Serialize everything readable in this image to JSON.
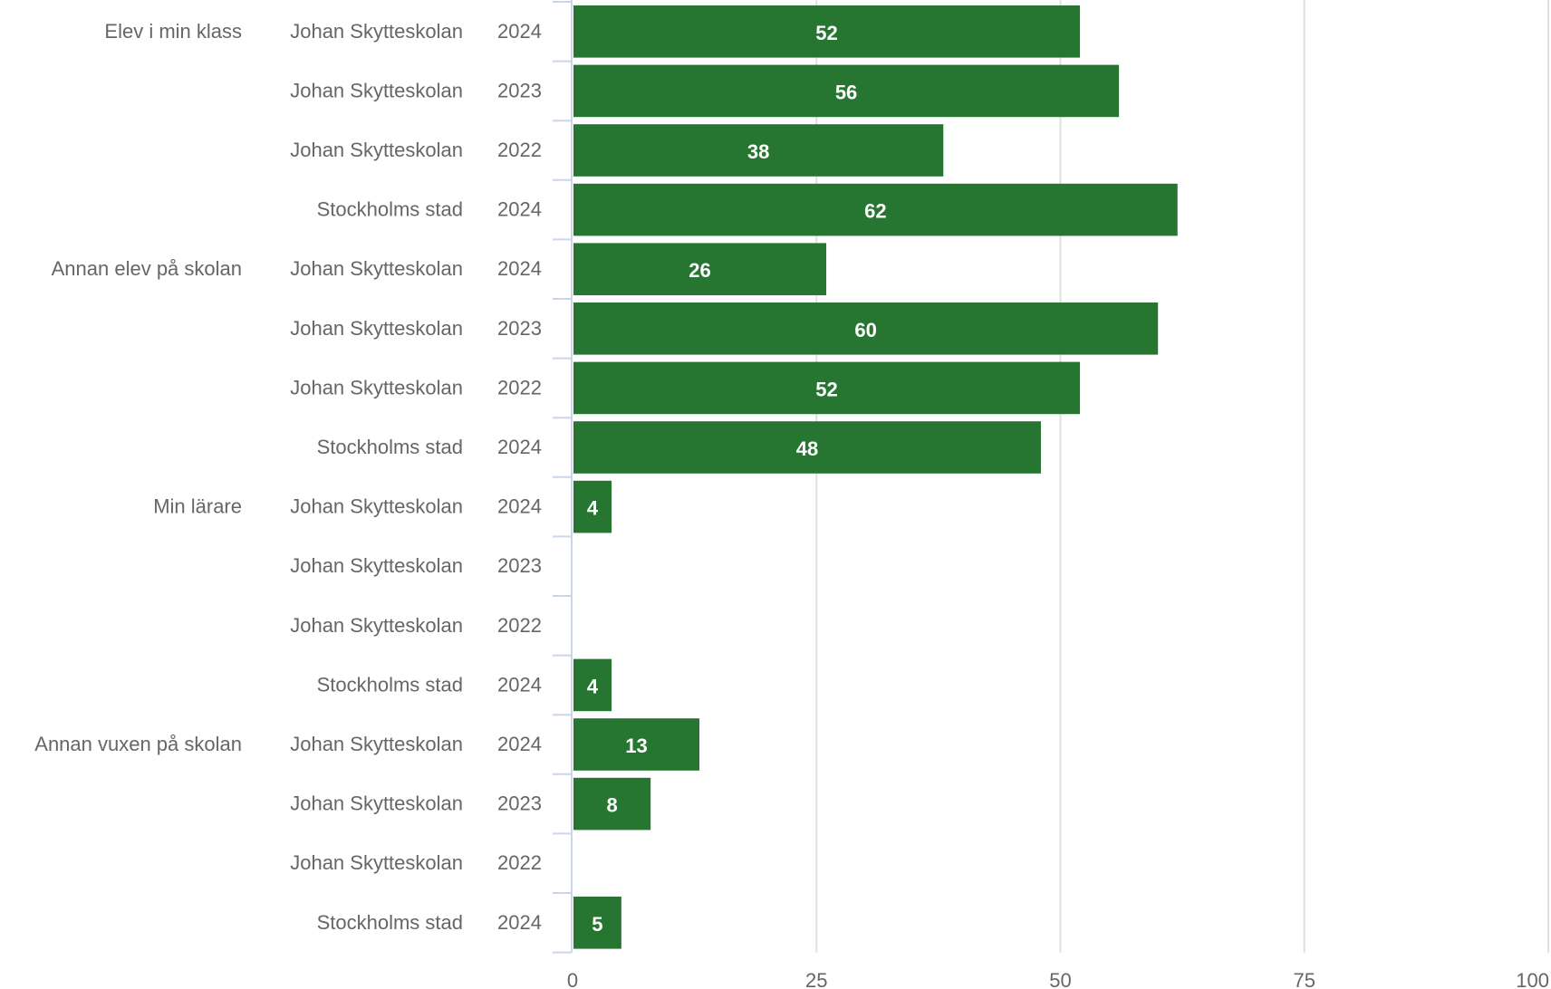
{
  "chart_data": {
    "type": "bar",
    "orientation": "horizontal",
    "title": "",
    "xlabel": "",
    "ylabel": "",
    "xlim": [
      0,
      100
    ],
    "ticks": [
      0,
      25,
      50,
      75,
      100
    ],
    "grid": true,
    "bar_color": "#267530",
    "categories": [
      {
        "group": "Elev i min klass",
        "school": "Johan Skytteskolan",
        "year": "2024",
        "value": 52
      },
      {
        "group": "",
        "school": "Johan Skytteskolan",
        "year": "2023",
        "value": 56
      },
      {
        "group": "",
        "school": "Johan Skytteskolan",
        "year": "2022",
        "value": 38
      },
      {
        "group": "",
        "school": "Stockholms stad",
        "year": "2024",
        "value": 62
      },
      {
        "group": "Annan elev på skolan",
        "school": "Johan Skytteskolan",
        "year": "2024",
        "value": 26
      },
      {
        "group": "",
        "school": "Johan Skytteskolan",
        "year": "2023",
        "value": 60
      },
      {
        "group": "",
        "school": "Johan Skytteskolan",
        "year": "2022",
        "value": 52
      },
      {
        "group": "",
        "school": "Stockholms stad",
        "year": "2024",
        "value": 48
      },
      {
        "group": "Min lärare",
        "school": "Johan Skytteskolan",
        "year": "2024",
        "value": 4
      },
      {
        "group": "",
        "school": "Johan Skytteskolan",
        "year": "2023",
        "value": null
      },
      {
        "group": "",
        "school": "Johan Skytteskolan",
        "year": "2022",
        "value": null
      },
      {
        "group": "",
        "school": "Stockholms stad",
        "year": "2024",
        "value": 4
      },
      {
        "group": "Annan vuxen på skolan",
        "school": "Johan Skytteskolan",
        "year": "2024",
        "value": 13
      },
      {
        "group": "",
        "school": "Johan Skytteskolan",
        "year": "2023",
        "value": 8
      },
      {
        "group": "",
        "school": "Johan Skytteskolan",
        "year": "2022",
        "value": null
      },
      {
        "group": "",
        "school": "Stockholms stad",
        "year": "2024",
        "value": 5
      }
    ]
  }
}
